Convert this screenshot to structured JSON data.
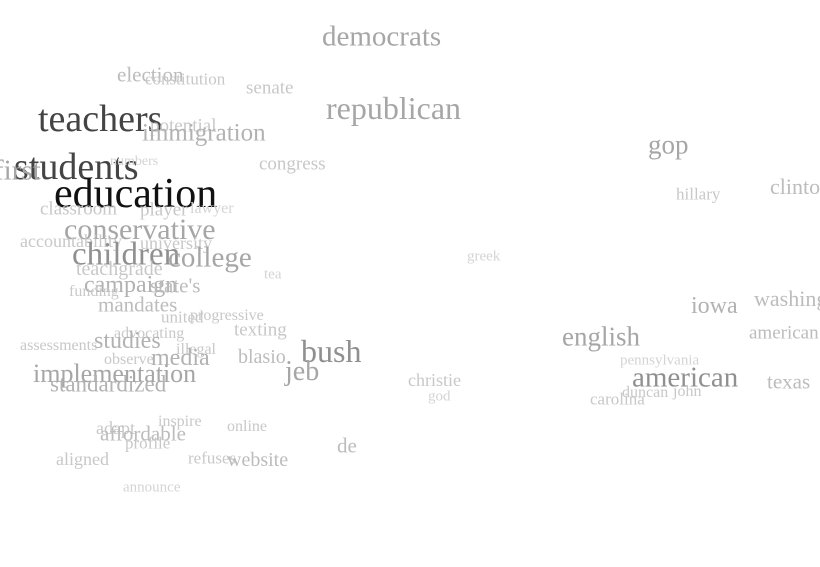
{
  "words": [
    {
      "text": "democrats",
      "level": 5
    },
    {
      "text": "election",
      "level": 3
    },
    {
      "text": "constitution",
      "level": 2
    },
    {
      "text": "senate",
      "level": 2
    },
    {
      "text": "republican",
      "level": 5
    },
    {
      "text": "teachers",
      "level": 9
    },
    {
      "text": "potential",
      "level": 2
    },
    {
      "text": "immigration",
      "level": 4
    },
    {
      "text": "gop",
      "level": 5
    },
    {
      "text": "students",
      "level": 9
    },
    {
      "text": "first",
      "level": 5
    },
    {
      "text": "numbers",
      "level": 1
    },
    {
      "text": "congress",
      "level": 2
    },
    {
      "text": "education",
      "level": 10
    },
    {
      "text": "hillary",
      "level": 2
    },
    {
      "text": "clinton",
      "level": 3
    },
    {
      "text": "classroom",
      "level": 2
    },
    {
      "text": "player",
      "level": 2
    },
    {
      "text": "lawyer",
      "level": 1
    },
    {
      "text": "conservative",
      "level": 5
    },
    {
      "text": "accountability",
      "level": 2
    },
    {
      "text": "university",
      "level": 2
    },
    {
      "text": "children",
      "level": 6
    },
    {
      "text": "college",
      "level": 5
    },
    {
      "text": "teachgrade",
      "level": 2
    },
    {
      "text": "greek",
      "level": 1
    },
    {
      "text": "tea",
      "level": 1
    },
    {
      "text": "campaign",
      "level": 4
    },
    {
      "text": "state's",
      "level": 3
    },
    {
      "text": "funding",
      "level": 2
    },
    {
      "text": "mandates",
      "level": 3
    },
    {
      "text": "iowa",
      "level": 4
    },
    {
      "text": "washington",
      "level": 3
    },
    {
      "text": "united",
      "level": 2
    },
    {
      "text": "progressive",
      "level": 2
    },
    {
      "text": "texting",
      "level": 2
    },
    {
      "text": "advocating",
      "level": 2
    },
    {
      "text": "english",
      "level": 5
    },
    {
      "text": "american",
      "level": 3
    },
    {
      "text": "studies",
      "level": 4
    },
    {
      "text": "assessments",
      "level": 2
    },
    {
      "text": "illegal",
      "level": 2
    },
    {
      "text": "bush",
      "level": 6
    },
    {
      "text": "media",
      "level": 4
    },
    {
      "text": "observe",
      "level": 2
    },
    {
      "text": "blasio",
      "level": 3
    },
    {
      "text": "jeb",
      "level": 5
    },
    {
      "text": "pennsylvania",
      "level": 1
    },
    {
      "text": "implementation",
      "level": 5
    },
    {
      "text": "standardized",
      "level": 4
    },
    {
      "text": "christie",
      "level": 2
    },
    {
      "text": "american",
      "level": 6
    },
    {
      "text": "texas",
      "level": 3
    },
    {
      "text": "duncan",
      "level": 2
    },
    {
      "text": "john",
      "level": 2
    },
    {
      "text": "god",
      "level": 1
    },
    {
      "text": "carolina",
      "level": 2
    },
    {
      "text": "adapt",
      "level": 2
    },
    {
      "text": "affordable",
      "level": 3
    },
    {
      "text": "inspire",
      "level": 2
    },
    {
      "text": "online",
      "level": 2
    },
    {
      "text": "profile",
      "level": 2
    },
    {
      "text": "de",
      "level": 3
    },
    {
      "text": "aligned",
      "level": 2
    },
    {
      "text": "refuses",
      "level": 2
    },
    {
      "text": "website",
      "level": 3
    },
    {
      "text": "announce",
      "level": 1
    }
  ]
}
